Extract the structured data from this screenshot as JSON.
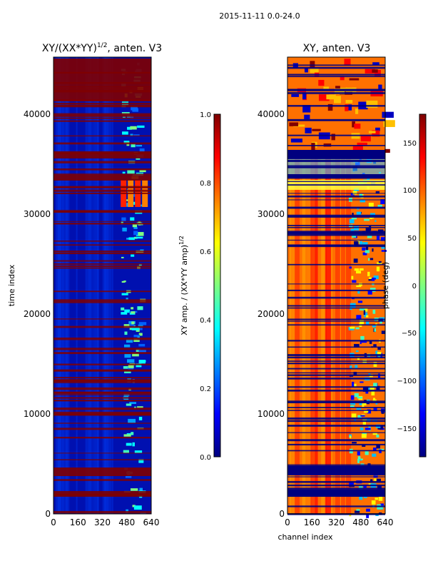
{
  "suptitle": "2015-11-11 0.0-24.0",
  "colors": {
    "band_red": "#800000",
    "band_navy": "#00007f",
    "jet": [
      "#00007f",
      "#0000ff",
      "#007fff",
      "#00ffff",
      "#7fff7f",
      "#ffff00",
      "#ff7f00",
      "#ff0000",
      "#7f0000"
    ]
  },
  "chart_data": [
    {
      "type": "heatmap",
      "title_main": "XY/(XX*YY)",
      "title_sup": "1/2",
      "title_tail": ", anten. V3",
      "xlabel": "",
      "ylabel": "time index",
      "xlim": [
        0,
        640
      ],
      "ylim": [
        0,
        46000
      ],
      "xticks": [
        "0",
        "160",
        "320",
        "480",
        "640"
      ],
      "yticks": [
        "0",
        "10000",
        "20000",
        "30000",
        "40000"
      ],
      "colorbar": {
        "label_main": "XY amp. / (XX*YY amp)",
        "label_sup": "1/2",
        "range": [
          0.0,
          1.0
        ],
        "ticks": [
          "0.0",
          "0.2",
          "0.4",
          "0.6",
          "0.8",
          "1.0"
        ]
      }
    },
    {
      "type": "heatmap",
      "title_main": "XY, anten. V3",
      "xlabel": "channel index",
      "ylabel": "",
      "xlim": [
        0,
        640
      ],
      "ylim": [
        0,
        46000
      ],
      "xticks": [
        "0",
        "160",
        "320",
        "480",
        "640"
      ],
      "yticks": [
        "0",
        "10000",
        "20000",
        "30000",
        "40000"
      ],
      "colorbar": {
        "label": "phase (deg)",
        "range": [
          -180,
          180
        ],
        "ticks": [
          "−150",
          "−100",
          "−50",
          "0",
          "50",
          "100",
          "150"
        ]
      }
    }
  ]
}
